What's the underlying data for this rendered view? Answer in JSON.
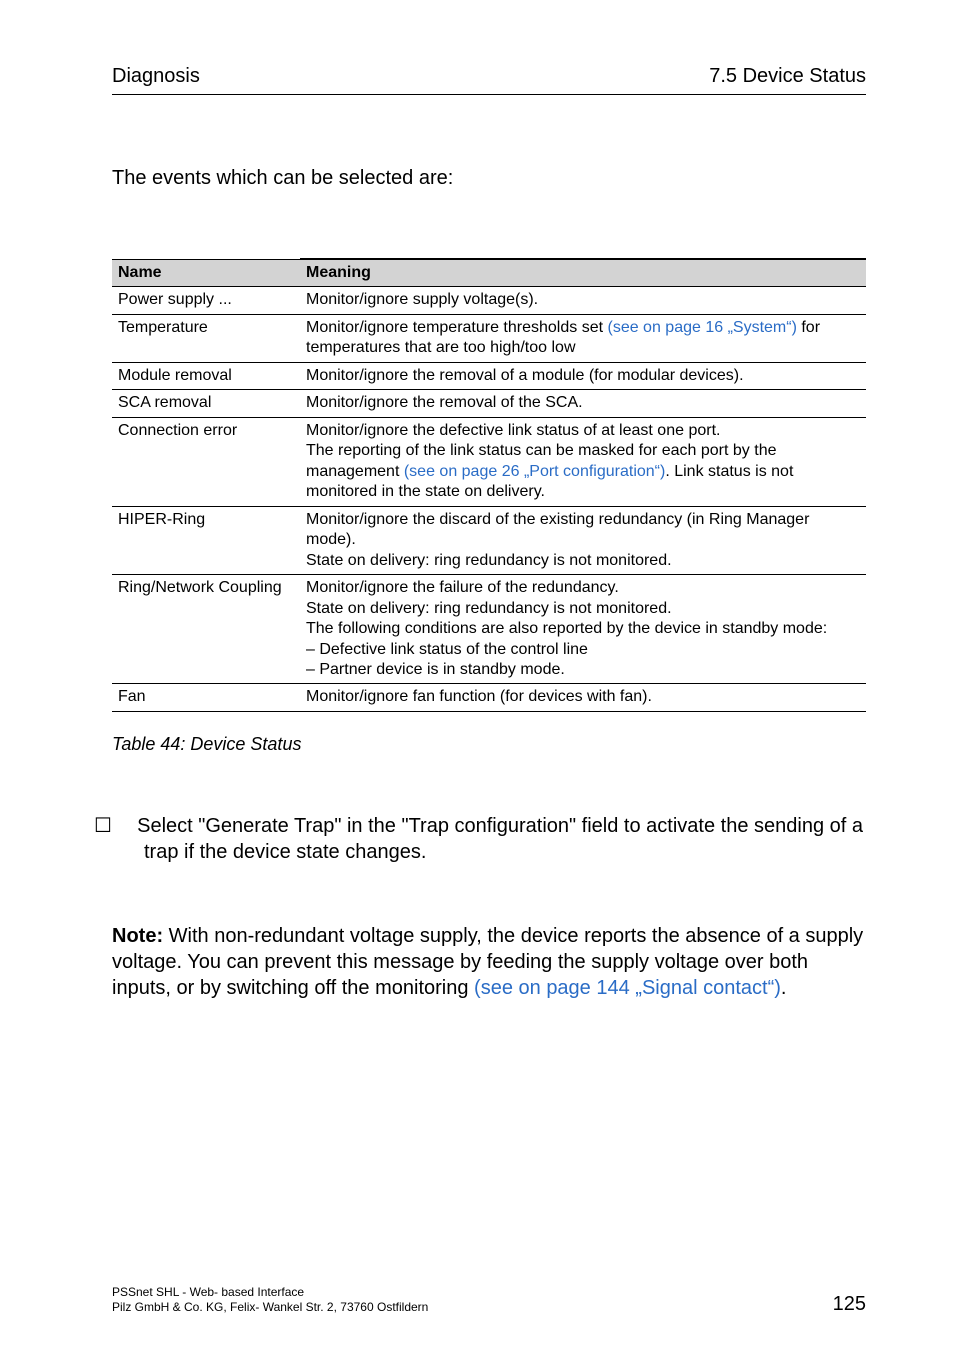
{
  "header": {
    "left": "Diagnosis",
    "right": "7.5  Device Status"
  },
  "intro": "The events which can be selected are:",
  "table": {
    "columns": [
      "Name",
      "Meaning"
    ],
    "rows": [
      {
        "name": "Power supply ...",
        "meaning_parts": [
          {
            "t": "Monitor/ignore supply voltage(s)."
          }
        ]
      },
      {
        "name": "Temperature",
        "meaning_parts": [
          {
            "t": "Monitor/ignore temperature thresholds set "
          },
          {
            "t": "(see on page 16 „System“)",
            "link": true
          },
          {
            "t": " for temperatures that are too high/too low"
          }
        ]
      },
      {
        "name": "Module removal",
        "meaning_parts": [
          {
            "t": "Monitor/ignore the removal of a module (for modular devices)."
          }
        ]
      },
      {
        "name": "SCA removal",
        "meaning_parts": [
          {
            "t": "Monitor/ignore the removal of the SCA."
          }
        ]
      },
      {
        "name": "Connection error",
        "meaning_parts": [
          {
            "t": "Monitor/ignore the defective link status of at least one port."
          },
          {
            "br": true
          },
          {
            "t": "The reporting of the link status can be masked for each port by the management "
          },
          {
            "t": "(see on page 26 „Port configuration“)",
            "link": true
          },
          {
            "t": ". Link status is not monitored in the state on delivery."
          }
        ]
      },
      {
        "name": "HIPER-Ring",
        "meaning_parts": [
          {
            "t": "Monitor/ignore the discard of the existing redundancy (in Ring Manager mode)."
          },
          {
            "br": true
          },
          {
            "t": "State on delivery: ring redundancy is not monitored."
          }
        ]
      },
      {
        "name": "Ring/Network Coupling",
        "meaning_parts": [
          {
            "t": "Monitor/ignore the failure of the redundancy."
          },
          {
            "br": true
          },
          {
            "t": "State on delivery: ring redundancy is not monitored."
          },
          {
            "br": true
          },
          {
            "t": "The following conditions are also reported by the device in standby mode:"
          },
          {
            "br": true
          },
          {
            "t": "– Defective link status of the control line"
          },
          {
            "br": true
          },
          {
            "t": "– Partner device is in standby mode."
          }
        ]
      },
      {
        "name": "Fan",
        "meaning_parts": [
          {
            "t": "Monitor/ignore fan function (for devices with fan)."
          }
        ]
      }
    ]
  },
  "table_caption": "Table 44: Device Status",
  "checklist_item": "Select \"Generate Trap\" in the \"Trap configuration\" field to activate the sending of a trap if the device state changes.",
  "note_label": "Note:",
  "note_body_plain": " With non-redundant voltage supply, the device reports the absence of a supply voltage. You can prevent this message by feeding the supply voltage over both inputs, or by switching off the monitoring ",
  "note_link": "(see on page 144 „Signal contact“)",
  "note_tail": ".",
  "footer": {
    "line1": "PSSnet SHL - Web- based Interface",
    "line2": "Pilz GmbH & Co. KG, Felix- Wankel Str. 2, 73760 Ostfildern",
    "page_number": "125"
  },
  "colors": {
    "link": "#2a6cc6",
    "thead_bg": "#d3d3d3"
  }
}
